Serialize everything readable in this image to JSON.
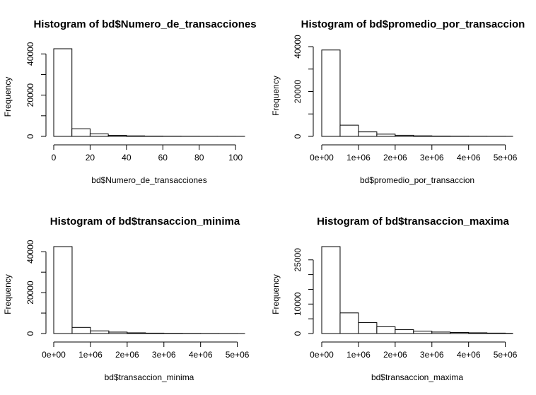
{
  "chart_data": [
    {
      "type": "bar",
      "title": "Histogram of bd$Numero_de_transacciones",
      "xlabel": "bd$Numero_de_transacciones",
      "ylabel": "Frequency",
      "bin_edges": [
        0,
        10,
        20,
        30,
        40,
        50,
        60,
        70,
        80,
        90,
        100,
        105
      ],
      "values": [
        42500,
        3700,
        1200,
        500,
        250,
        130,
        80,
        50,
        30,
        20,
        10
      ],
      "xlim": [
        0,
        105
      ],
      "ylim": [
        0,
        42500
      ],
      "x_ticks": [
        0,
        20,
        40,
        60,
        80,
        100
      ],
      "x_tick_labels": [
        "0",
        "20",
        "40",
        "60",
        "80",
        "100"
      ],
      "y_ticks": [
        0,
        10000,
        20000,
        30000,
        40000
      ],
      "y_tick_labels": [
        "0",
        "",
        "20000",
        "",
        "40000"
      ]
    },
    {
      "type": "bar",
      "title": "Histogram of bd$promedio_por_transaccion",
      "xlabel": "bd$promedio_por_transaccion",
      "ylabel": "Frequency",
      "bin_edges": [
        0,
        500000,
        1000000,
        1500000,
        2000000,
        2500000,
        3000000,
        3500000,
        4000000,
        4500000,
        5000000,
        5200000
      ],
      "values": [
        38500,
        5000,
        2000,
        1000,
        500,
        250,
        150,
        100,
        60,
        40,
        20
      ],
      "xlim": [
        0,
        5200000
      ],
      "ylim": [
        0,
        40000
      ],
      "x_ticks": [
        0,
        1000000,
        2000000,
        3000000,
        4000000,
        5000000
      ],
      "x_tick_labels": [
        "0e+00",
        "1e+06",
        "2e+06",
        "3e+06",
        "4e+06",
        "5e+06"
      ],
      "y_ticks": [
        0,
        10000,
        20000,
        30000,
        40000
      ],
      "y_tick_labels": [
        "0",
        "",
        "20000",
        "",
        "40000"
      ]
    },
    {
      "type": "bar",
      "title": "Histogram of bd$transaccion_minima",
      "xlabel": "bd$transaccion_minima",
      "ylabel": "Frequency",
      "bin_edges": [
        0,
        500000,
        1000000,
        1500000,
        2000000,
        2500000,
        3000000,
        3500000,
        4000000,
        4500000,
        5000000,
        5200000
      ],
      "values": [
        42500,
        3000,
        1300,
        700,
        350,
        200,
        120,
        80,
        50,
        30,
        15
      ],
      "xlim": [
        0,
        5200000
      ],
      "ylim": [
        0,
        42500
      ],
      "x_ticks": [
        0,
        1000000,
        2000000,
        3000000,
        4000000,
        5000000
      ],
      "x_tick_labels": [
        "0e+00",
        "1e+06",
        "2e+06",
        "3e+06",
        "4e+06",
        "5e+06"
      ],
      "y_ticks": [
        0,
        10000,
        20000,
        30000,
        40000
      ],
      "y_tick_labels": [
        "0",
        "",
        "20000",
        "",
        "40000"
      ]
    },
    {
      "type": "bar",
      "title": "Histogram of bd$transaccion_maxima",
      "xlabel": "bd$transaccion_maxima",
      "ylabel": "Frequency",
      "bin_edges": [
        0,
        500000,
        1000000,
        1500000,
        2000000,
        2500000,
        3000000,
        3500000,
        4000000,
        4500000,
        5000000,
        5200000
      ],
      "values": [
        29500,
        7000,
        3700,
        2300,
        1300,
        800,
        500,
        350,
        250,
        150,
        80
      ],
      "xlim": [
        0,
        5200000
      ],
      "ylim": [
        0,
        29500
      ],
      "x_ticks": [
        0,
        1000000,
        2000000,
        3000000,
        4000000,
        5000000
      ],
      "x_tick_labels": [
        "0e+00",
        "1e+06",
        "2e+06",
        "3e+06",
        "4e+06",
        "5e+06"
      ],
      "y_ticks": [
        0,
        5000,
        10000,
        15000,
        20000,
        25000
      ],
      "y_tick_labels": [
        "0",
        "",
        "10000",
        "",
        "",
        "25000"
      ]
    }
  ]
}
